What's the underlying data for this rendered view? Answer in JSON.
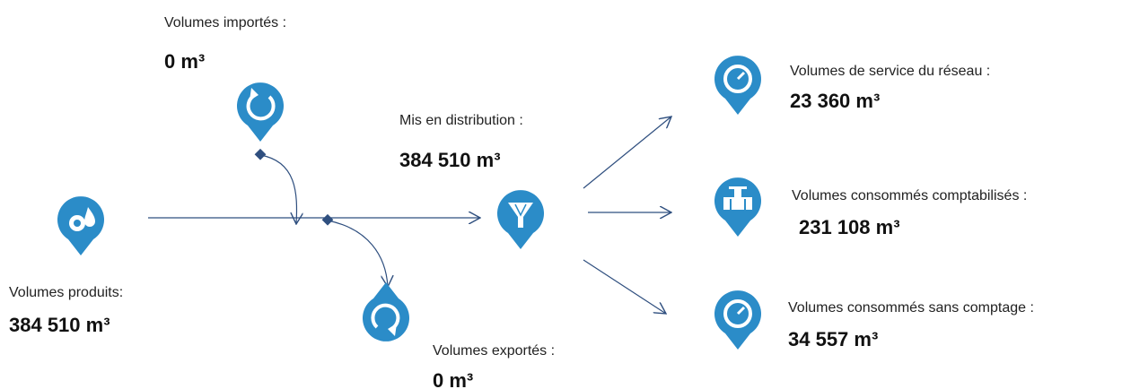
{
  "nodes": [
    {
      "label": "Volumes importés :",
      "value": "0 m³"
    },
    {
      "label": "Volumes produits:",
      "value": "384 510 m³"
    },
    {
      "label": "Mis en distribution :",
      "value": "384 510 m³"
    },
    {
      "label": "Volumes exportés :",
      "value": "0 m³"
    },
    {
      "label": "Volumes de service du réseau :",
      "value": "23 360 m³"
    },
    {
      "label": "Volumes consommés comptabilisés :",
      "value": "231 108 m³"
    },
    {
      "label": "Volumes consommés sans comptage :",
      "value": "34 557 m³"
    }
  ]
}
